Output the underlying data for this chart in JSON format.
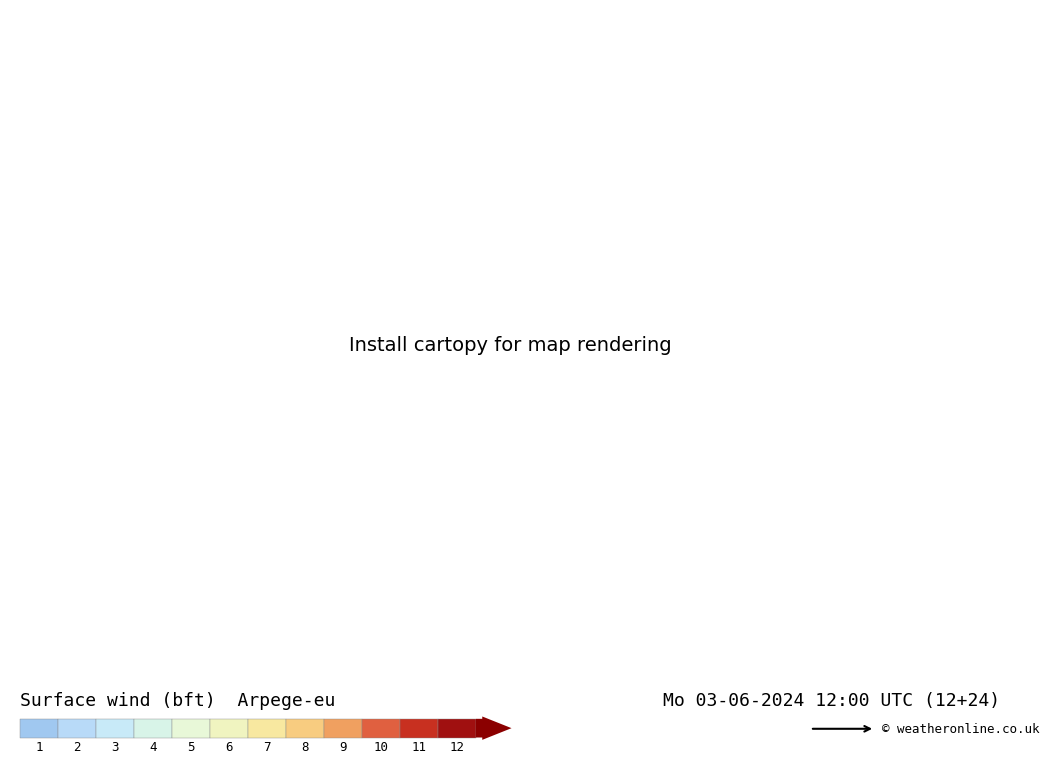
{
  "title_left": "Surface wind (bft)  Arpege-eu",
  "title_right": "Mo 03-06-2024 12:00 UTC (12+24)",
  "colorbar_colors": [
    "#a0c8f0",
    "#b8daf8",
    "#c8eaf8",
    "#d8f4e8",
    "#e8f8d8",
    "#f0f4c0",
    "#f8e8a0",
    "#f8cc80",
    "#f0a060",
    "#e06040",
    "#c83020",
    "#a01010"
  ],
  "colorbar_labels": [
    "1",
    "2",
    "3",
    "4",
    "5",
    "6",
    "7",
    "8",
    "9",
    "10",
    "11",
    "12"
  ],
  "credit": "© weatheronline.co.uk",
  "bg_map_color": "#aaddee",
  "font_size_title": 13,
  "font_size_credit": 9,
  "colorbar_arrow_color": "#8b0000",
  "wind_arrow_color": "#000000",
  "bottom_bar_height": 0.085,
  "lon_min": -26,
  "lon_max": 50,
  "lat_min": 27,
  "lat_max": 75,
  "line_color": "#555555"
}
